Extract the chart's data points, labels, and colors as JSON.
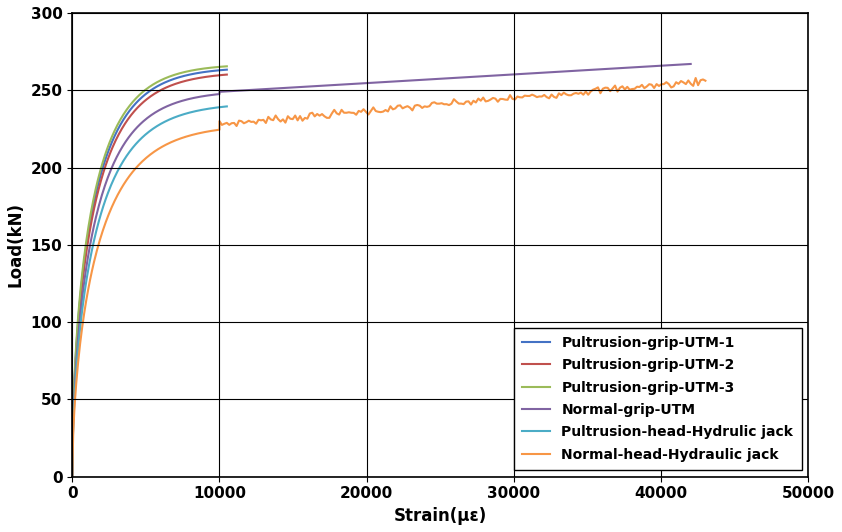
{
  "title": "",
  "xlabel": "Strain(με)",
  "ylabel": "Load(kN)",
  "xlim": [
    0,
    50000
  ],
  "ylim": [
    0,
    300
  ],
  "xticks": [
    0,
    10000,
    20000,
    30000,
    40000,
    50000
  ],
  "yticks": [
    0,
    50,
    100,
    150,
    200,
    250,
    300
  ],
  "series": [
    {
      "label": "Pultrusion-grip-UTM-1",
      "color": "#4472C4"
    },
    {
      "label": "Pultrusion-grip-UTM-2",
      "color": "#C0504D"
    },
    {
      "label": "Pultrusion-grip-UTM-3",
      "color": "#9BBB59"
    },
    {
      "label": "Normal-grip-UTM",
      "color": "#8064A2"
    },
    {
      "label": "Pultrusion-head-Hydrulic jack",
      "color": "#4BACC6"
    },
    {
      "label": "Normal-head-Hydraulic jack",
      "color": "#F79646"
    }
  ],
  "legend_loc": "lower right",
  "legend_fontsize": 10,
  "axis_label_fontsize": 12,
  "tick_fontsize": 11,
  "linewidth": 1.5,
  "grid_color": "#000000",
  "grid_linewidth": 0.8,
  "background_color": "#ffffff"
}
